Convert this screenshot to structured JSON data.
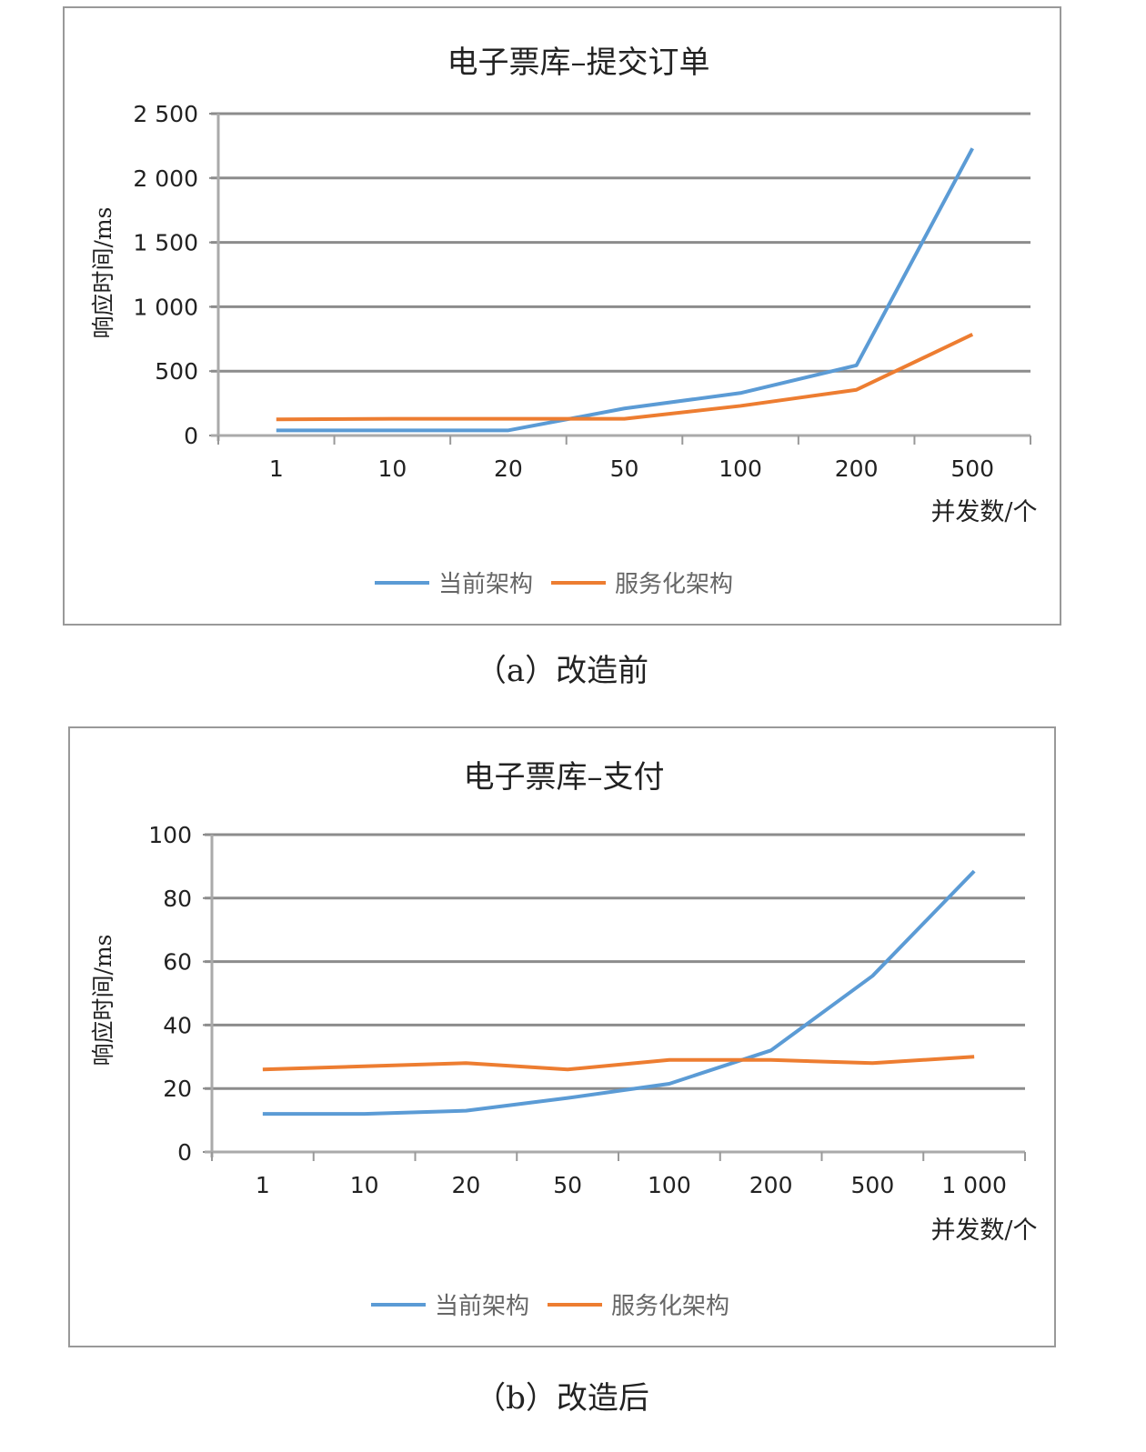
{
  "chart_data": [
    {
      "type": "line",
      "title": "电子票库–提交订单",
      "caption": "（a）改造前",
      "xlabel": "并发数/个",
      "ylabel": "响应时间/ms",
      "categories": [
        "1",
        "10",
        "20",
        "50",
        "100",
        "200",
        "500"
      ],
      "ylim": [
        0,
        2500
      ],
      "yticks": [
        0,
        500,
        1000,
        1500,
        2000,
        2500
      ],
      "ytick_labels": [
        "0",
        "500",
        "1 000",
        "1 500",
        "2 000",
        "2 500"
      ],
      "grid": true,
      "legend": "bottom-center",
      "series": [
        {
          "name": "当前架构",
          "color": "#5b9bd5",
          "values": [
            40,
            40,
            40,
            210,
            330,
            545,
            2230
          ]
        },
        {
          "name": "服务化架构",
          "color": "#ed7d31",
          "values": [
            125,
            130,
            130,
            130,
            230,
            355,
            785
          ]
        }
      ]
    },
    {
      "type": "line",
      "title": "电子票库–支付",
      "caption": "（b）改造后",
      "xlabel": "并发数/个",
      "ylabel": "响应时间/ms",
      "categories": [
        "1",
        "10",
        "20",
        "50",
        "100",
        "200",
        "500",
        "1 000"
      ],
      "ylim": [
        0,
        100
      ],
      "yticks": [
        0,
        20,
        40,
        60,
        80,
        100
      ],
      "ytick_labels": [
        "0",
        "20",
        "40",
        "60",
        "80",
        "100"
      ],
      "grid": true,
      "legend": "bottom-center",
      "series": [
        {
          "name": "当前架构",
          "color": "#5b9bd5",
          "values": [
            12,
            12,
            13,
            17,
            21.5,
            32,
            55.5,
            88.5
          ]
        },
        {
          "name": "服务化架构",
          "color": "#ed7d31",
          "values": [
            26,
            27,
            28,
            26,
            29,
            29,
            28,
            30
          ]
        }
      ]
    }
  ]
}
